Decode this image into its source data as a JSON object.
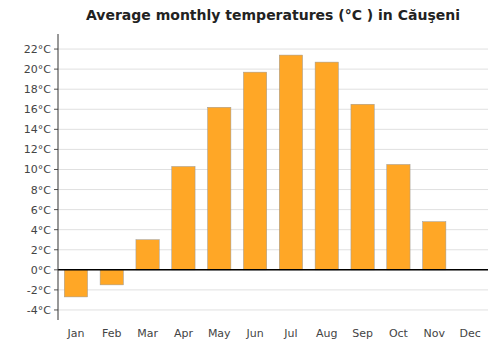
{
  "chart_data": {
    "type": "bar",
    "title": "Average monthly temperatures (°C ) in Căuşeni",
    "categories": [
      "Jan",
      "Feb",
      "Mar",
      "Apr",
      "May",
      "Jun",
      "Jul",
      "Aug",
      "Sep",
      "Oct",
      "Nov",
      "Dec"
    ],
    "values": [
      -2.7,
      -1.5,
      3.0,
      10.3,
      16.2,
      19.7,
      21.4,
      20.7,
      16.5,
      10.5,
      4.8,
      0.0
    ],
    "color": "#FFA726",
    "ylim": [
      -5,
      23.5
    ],
    "yticks": [
      {
        "value": -4,
        "label": "-4°C"
      },
      {
        "value": -2,
        "label": "-2°C"
      },
      {
        "value": 0,
        "label": "0°C"
      },
      {
        "value": 2,
        "label": "2°C"
      },
      {
        "value": 4,
        "label": "4°C"
      },
      {
        "value": 6,
        "label": "6°C"
      },
      {
        "value": 8,
        "label": "8°C"
      },
      {
        "value": 10,
        "label": "10°C"
      },
      {
        "value": 12,
        "label": "12°C"
      },
      {
        "value": 14,
        "label": "14°C"
      },
      {
        "value": 16,
        "label": "16°C"
      },
      {
        "value": 18,
        "label": "18°C"
      },
      {
        "value": 20,
        "label": "20°C"
      },
      {
        "value": 22,
        "label": "22°C"
      }
    ],
    "grid": true
  }
}
